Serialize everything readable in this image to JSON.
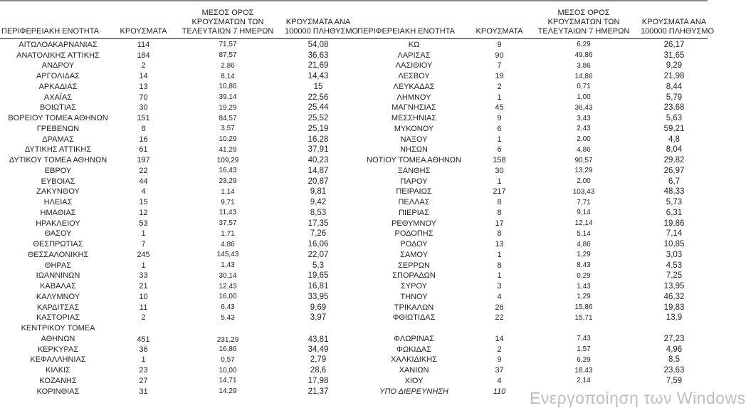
{
  "headers": {
    "region": "ΠΕΡΙΦΕΡΕΙΑΚΗ ΕΝΟΤΗΤΑ",
    "cases": "ΚΡΟΥΣΜΑΤΑ",
    "avg7_lines": [
      "ΜΕΣΟΣ ΟΡΟΣ",
      "ΚΡΟΥΣΜΑΤΩΝ ΤΩΝ",
      "ΤΕΛΕΥΤΑΙΩΝ 7 ΗΜΕΡΩΝ"
    ],
    "per100k_lines": [
      "ΚΡΟΥΣΜΑΤΑ ΑΝΑ",
      "100000 ΠΛΗΘΥΣΜΟ"
    ]
  },
  "left_table": {
    "rows": [
      {
        "region": "ΑΙΤΩΛΟΑΚΑΡΝΑΝΙΑΣ",
        "cases": "114",
        "avg7": "71,57",
        "per100k": "54,08"
      },
      {
        "region": "ΑΝΑΤΟΛΙΚΗΣ ΑΤΤΙΚΗΣ",
        "cases": "184",
        "avg7": "87,57",
        "per100k": "36,63"
      },
      {
        "region": "ΑΝΔΡΟΥ",
        "cases": "2",
        "avg7": "2,86",
        "per100k": "21,69"
      },
      {
        "region": "ΑΡΓΟΛΙΔΑΣ",
        "cases": "14",
        "avg7": "8,14",
        "per100k": "14,43"
      },
      {
        "region": "ΑΡΚΑΔΙΑΣ",
        "cases": "13",
        "avg7": "10,86",
        "per100k": "15"
      },
      {
        "region": "ΑΧΑΪΑΣ",
        "cases": "70",
        "avg7": "39,14",
        "per100k": "22,56"
      },
      {
        "region": "ΒΟΙΩΤΙΑΣ",
        "cases": "30",
        "avg7": "19,29",
        "per100k": "25,44"
      },
      {
        "region": "ΒΟΡΕΙΟΥ ΤΟΜΕΑ ΑΘΗΝΩΝ",
        "cases": "151",
        "avg7": "84,57",
        "per100k": "25,52"
      },
      {
        "region": "ΓΡΕΒΕΝΩΝ",
        "cases": "8",
        "avg7": "3,57",
        "per100k": "25,19"
      },
      {
        "region": "ΔΡΑΜΑΣ",
        "cases": "16",
        "avg7": "10,29",
        "per100k": "16,28"
      },
      {
        "region": "ΔΥΤΙΚΗΣ ΑΤΤΙΚΗΣ",
        "cases": "61",
        "avg7": "41,29",
        "per100k": "37,91"
      },
      {
        "region": "ΔΥΤΙΚΟΥ ΤΟΜΕΑ ΑΘΗΝΩΝ",
        "cases": "197",
        "avg7": "109,29",
        "per100k": "40,23"
      },
      {
        "region": "ΕΒΡΟΥ",
        "cases": "22",
        "avg7": "16,43",
        "per100k": "14,87"
      },
      {
        "region": "ΕΥΒΟΙΑΣ",
        "cases": "44",
        "avg7": "23,29",
        "per100k": "20,87"
      },
      {
        "region": "ΖΑΚΥΝΘΟΥ",
        "cases": "4",
        "avg7": "1,14",
        "per100k": "9,81"
      },
      {
        "region": "ΗΛΕΙΑΣ",
        "cases": "15",
        "avg7": "9,71",
        "per100k": "9,42"
      },
      {
        "region": "ΗΜΑΘΙΑΣ",
        "cases": "12",
        "avg7": "11,43",
        "per100k": "8,53"
      },
      {
        "region": "ΗΡΑΚΛΕΙΟΥ",
        "cases": "53",
        "avg7": "37,57",
        "per100k": "17,35"
      },
      {
        "region": "ΘΑΣΟΥ",
        "cases": "1",
        "avg7": "1,71",
        "per100k": "7,26"
      },
      {
        "region": "ΘΕΣΠΡΩΤΙΑΣ",
        "cases": "7",
        "avg7": "4,86",
        "per100k": "16,06"
      },
      {
        "region": "ΘΕΣΣΑΛΟΝΙΚΗΣ",
        "cases": "245",
        "avg7": "145,43",
        "per100k": "22,07"
      },
      {
        "region": "ΘΗΡΑΣ",
        "cases": "1",
        "avg7": "1,43",
        "per100k": "5,3"
      },
      {
        "region": "ΙΩΑΝΝΙΝΩΝ",
        "cases": "33",
        "avg7": "30,14",
        "per100k": "19,65"
      },
      {
        "region": "ΚΑΒΑΛΑΣ",
        "cases": "21",
        "avg7": "12,43",
        "per100k": "16,81"
      },
      {
        "region": "ΚΑΛΥΜΝΟΥ",
        "cases": "10",
        "avg7": "16,00",
        "per100k": "33,95"
      },
      {
        "region": "ΚΑΡΔΙΤΣΑΣ",
        "cases": "11",
        "avg7": "6,43",
        "per100k": "9,69"
      },
      {
        "region": "ΚΑΣΤΟΡΙΑΣ",
        "cases": "2",
        "avg7": "5,43",
        "per100k": "3,97"
      },
      {
        "region_lines": [
          "ΚΕΝΤΡΙΚΟΥ ΤΟΜΕΑ",
          "ΑΘΗΝΩΝ"
        ],
        "cases": "451",
        "avg7": "231,29",
        "per100k": "43,81"
      },
      {
        "region": "ΚΕΡΚΥΡΑΣ",
        "cases": "36",
        "avg7": "16,86",
        "per100k": "34,49"
      },
      {
        "region": "ΚΕΦΑΛΛΗΝΙΑΣ",
        "cases": "1",
        "avg7": "0,57",
        "per100k": "2,79"
      },
      {
        "region": "ΚΙΛΚΙΣ",
        "cases": "23",
        "avg7": "10,00",
        "per100k": "28,6"
      },
      {
        "region": "ΚΟΖΑΝΗΣ",
        "cases": "27",
        "avg7": "14,71",
        "per100k": "17,98"
      },
      {
        "region": "ΚΟΡΙΝΘΙΑΣ",
        "cases": "31",
        "avg7": "14,29",
        "per100k": "21,37"
      }
    ]
  },
  "right_table": {
    "rows": [
      {
        "region": "ΚΩ",
        "cases": "9",
        "avg7": "6,29",
        "per100k": "26,17"
      },
      {
        "region": "ΛΑΡΙΣΑΣ",
        "cases": "90",
        "avg7": "49,86",
        "per100k": "31,65"
      },
      {
        "region": "ΛΑΣΙΘΙΟΥ",
        "cases": "7",
        "avg7": "3,86",
        "per100k": "9,29"
      },
      {
        "region": "ΛΕΣΒΟΥ",
        "cases": "19",
        "avg7": "14,86",
        "per100k": "21,98"
      },
      {
        "region": "ΛΕΥΚΑΔΑΣ",
        "cases": "2",
        "avg7": "0,71",
        "per100k": "8,44"
      },
      {
        "region": "ΛΗΜΝΟΥ",
        "cases": "1",
        "avg7": "1,00",
        "per100k": "5,79"
      },
      {
        "region": "ΜΑΓΝΗΣΙΑΣ",
        "cases": "45",
        "avg7": "36,43",
        "per100k": "23,68"
      },
      {
        "region": "ΜΕΣΣΗΝΙΑΣ",
        "cases": "9",
        "avg7": "3,43",
        "per100k": "5,63"
      },
      {
        "region": "ΜΥΚΟΝΟΥ",
        "cases": "6",
        "avg7": "2,43",
        "per100k": "59,21"
      },
      {
        "region": "ΝΑΞΟΥ",
        "cases": "1",
        "avg7": "2,00",
        "per100k": "4,8"
      },
      {
        "region": "ΝΗΣΩΝ",
        "cases": "6",
        "avg7": "4,86",
        "per100k": "8,04"
      },
      {
        "region": "ΝΟΤΙΟΥ ΤΟΜΕΑ ΑΘΗΝΩΝ",
        "cases": "158",
        "avg7": "90,57",
        "per100k": "29,82"
      },
      {
        "region": "ΞΑΝΘΗΣ",
        "cases": "30",
        "avg7": "13,29",
        "per100k": "26,97"
      },
      {
        "region": "ΠΑΡΟΥ",
        "cases": "1",
        "avg7": "2,00",
        "per100k": "6,7"
      },
      {
        "region": "ΠΕΙΡΑΙΩΣ",
        "cases": "217",
        "avg7": "103,43",
        "per100k": "48,33"
      },
      {
        "region": "ΠΕΛΛΑΣ",
        "cases": "8",
        "avg7": "7,71",
        "per100k": "5,73"
      },
      {
        "region": "ΠΙΕΡΙΑΣ",
        "cases": "8",
        "avg7": "9,14",
        "per100k": "6,31"
      },
      {
        "region": "ΡΕΘΥΜΝΟΥ",
        "cases": "17",
        "avg7": "12,14",
        "per100k": "19,86"
      },
      {
        "region": "ΡΟΔΟΠΗΣ",
        "cases": "8",
        "avg7": "5,14",
        "per100k": "7,14"
      },
      {
        "region": "ΡΟΔΟΥ",
        "cases": "13",
        "avg7": "4,86",
        "per100k": "10,85"
      },
      {
        "region": "ΣΑΜΟΥ",
        "cases": "1",
        "avg7": "1,29",
        "per100k": "3,03"
      },
      {
        "region": "ΣΕΡΡΩΝ",
        "cases": "8",
        "avg7": "8,43",
        "per100k": "4,53"
      },
      {
        "region": "ΣΠΟΡΑΔΩΝ",
        "cases": "1",
        "avg7": "0,29",
        "per100k": "7,25"
      },
      {
        "region": "ΣΥΡΟΥ",
        "cases": "3",
        "avg7": "1,43",
        "per100k": "13,95"
      },
      {
        "region": "ΤΗΝΟΥ",
        "cases": "4",
        "avg7": "1,29",
        "per100k": "46,32"
      },
      {
        "region": "ΤΡΙΚΑΛΩΝ",
        "cases": "26",
        "avg7": "15,86",
        "per100k": "19,83"
      },
      {
        "region": "ΦΘΙΩΤΙΔΑΣ",
        "cases": "22",
        "avg7": "15,71",
        "per100k": "13,9"
      },
      {
        "spacer": true
      },
      {
        "region": "ΦΛΩΡΙΝΑΣ",
        "cases": "14",
        "avg7": "7,43",
        "per100k": "27,23"
      },
      {
        "region": "ΦΩΚΙΔΑΣ",
        "cases": "2",
        "avg7": "1,57",
        "per100k": "4,96"
      },
      {
        "region": "ΧΑΛΚΙΔΙΚΗΣ",
        "cases": "9",
        "avg7": "6,29",
        "per100k": "8,5"
      },
      {
        "region": "ΧΑΝΙΩΝ",
        "cases": "37",
        "avg7": "18,43",
        "per100k": "23,63"
      },
      {
        "region": "ΧΙΟΥ",
        "cases": "4",
        "avg7": "2,14",
        "per100k": "7,59"
      },
      {
        "region": "ΥΠΟ ΔΙΕΡΕΥΝΗΣΗ",
        "cases": "110",
        "avg7": "",
        "per100k": "",
        "italic": true
      }
    ]
  },
  "watermark": {
    "text": "Ενεργοποίηση των Windows"
  }
}
